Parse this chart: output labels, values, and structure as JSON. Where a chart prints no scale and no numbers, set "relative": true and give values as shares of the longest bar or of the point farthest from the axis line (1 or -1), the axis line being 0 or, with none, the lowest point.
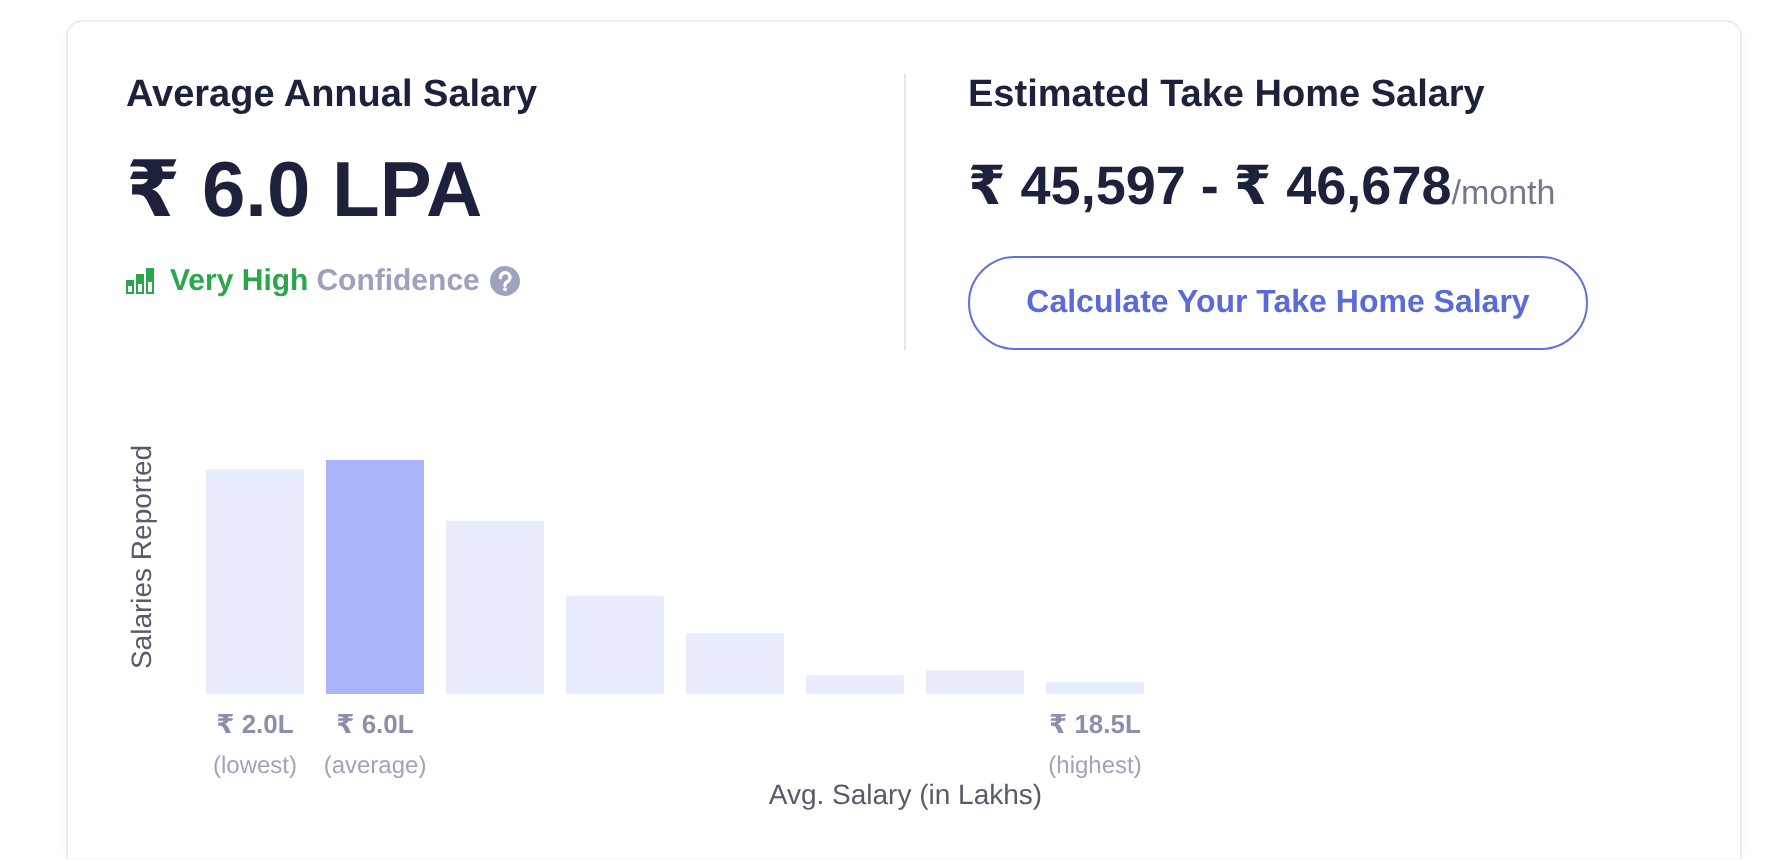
{
  "chart_data": [
    {
      "type": "other",
      "title": "Average Annual Salary",
      "annotations": [
        "₹ 6.0 LPA",
        "Very High",
        "Confidence"
      ]
    },
    {
      "type": "other",
      "title": "Estimated Take Home Salary",
      "annotations": [
        "₹ 45,597 - ₹ 46,678",
        "/month",
        "Calculate Your Take Home Salary"
      ]
    },
    {
      "type": "bar",
      "categories": [
        "₹ 2.0L\n(lowest)",
        "₹ 6.0L\n(average)",
        null,
        null,
        null,
        null,
        null,
        "₹ 18.5L\n(highest)"
      ],
      "values": [
        0.96,
        1,
        0.74,
        0.42,
        0.26,
        0.08,
        0.1,
        0.05
      ],
      "colors": [
        "#e9ecfc",
        "#aab4fa",
        "#e9ecfc",
        "#e9ecfc",
        "#e9ecfc",
        "#e9ecfc",
        "#e9ecfc",
        "#e9ecfc"
      ],
      "relative": true,
      "xlabel": "Avg. Salary (in Lakhs)",
      "ylabel": "Salaries Reported",
      "grid": false,
      "legend": false
    }
  ]
}
